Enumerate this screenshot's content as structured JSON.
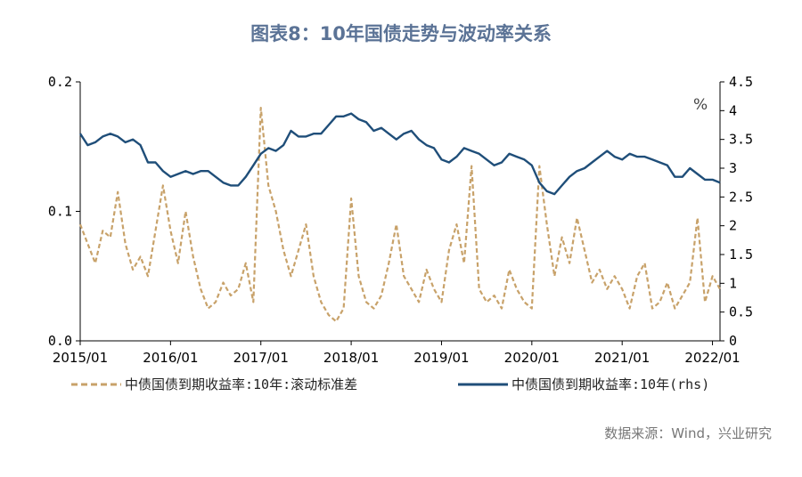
{
  "title": "图表8：10年国债走势与波动率关系",
  "source": "数据来源：Wind，兴业研究",
  "colors": {
    "left_series": "#c8a26a",
    "right_series": "#1f4e79",
    "title": "#5b7396"
  },
  "chart_data": {
    "type": "line",
    "left_axis": {
      "ylim": [
        0,
        0.2
      ],
      "ticks": [
        "0.0",
        "0.1",
        "0.2"
      ]
    },
    "right_axis": {
      "ylim": [
        0,
        4.5
      ],
      "unit": "%",
      "ticks": [
        "0",
        "0.5",
        "1",
        "1.5",
        "2",
        "2.5",
        "3",
        "3.5",
        "4",
        "4.5"
      ]
    },
    "x_ticks": [
      "2015/01",
      "2016/01",
      "2017/01",
      "2018/01",
      "2019/01",
      "2020/01",
      "2021/01",
      "2022/01"
    ],
    "x_range": [
      "2015/01",
      "2022/02"
    ],
    "legend": {
      "placement": "bottom"
    },
    "series": [
      {
        "name": "中债国债到期收益率:10年:滚动标准差",
        "axis": "left",
        "style": "dashed",
        "x": [
          "2015/01",
          "2015/02",
          "2015/03",
          "2015/04",
          "2015/05",
          "2015/06",
          "2015/07",
          "2015/08",
          "2015/09",
          "2015/10",
          "2015/11",
          "2015/12",
          "2016/01",
          "2016/02",
          "2016/03",
          "2016/04",
          "2016/05",
          "2016/06",
          "2016/07",
          "2016/08",
          "2016/09",
          "2016/10",
          "2016/11",
          "2016/12",
          "2017/01",
          "2017/02",
          "2017/03",
          "2017/04",
          "2017/05",
          "2017/06",
          "2017/07",
          "2017/08",
          "2017/09",
          "2017/10",
          "2017/11",
          "2017/12",
          "2018/01",
          "2018/02",
          "2018/03",
          "2018/04",
          "2018/05",
          "2018/06",
          "2018/07",
          "2018/08",
          "2018/09",
          "2018/10",
          "2018/11",
          "2018/12",
          "2019/01",
          "2019/02",
          "2019/03",
          "2019/04",
          "2019/05",
          "2019/06",
          "2019/07",
          "2019/08",
          "2019/09",
          "2019/10",
          "2019/11",
          "2019/12",
          "2020/01",
          "2020/02",
          "2020/03",
          "2020/04",
          "2020/05",
          "2020/06",
          "2020/07",
          "2020/08",
          "2020/09",
          "2020/10",
          "2020/11",
          "2020/12",
          "2021/01",
          "2021/02",
          "2021/03",
          "2021/04",
          "2021/05",
          "2021/06",
          "2021/07",
          "2021/08",
          "2021/09",
          "2021/10",
          "2021/11",
          "2021/12",
          "2022/01",
          "2022/02"
        ],
        "values": [
          0.09,
          0.075,
          0.06,
          0.085,
          0.08,
          0.115,
          0.075,
          0.055,
          0.065,
          0.05,
          0.085,
          0.12,
          0.085,
          0.06,
          0.1,
          0.065,
          0.04,
          0.025,
          0.03,
          0.045,
          0.035,
          0.04,
          0.06,
          0.03,
          0.18,
          0.12,
          0.1,
          0.07,
          0.05,
          0.07,
          0.09,
          0.05,
          0.03,
          0.02,
          0.015,
          0.025,
          0.11,
          0.05,
          0.03,
          0.025,
          0.035,
          0.06,
          0.09,
          0.05,
          0.04,
          0.03,
          0.055,
          0.04,
          0.03,
          0.07,
          0.09,
          0.06,
          0.135,
          0.04,
          0.03,
          0.035,
          0.025,
          0.055,
          0.04,
          0.03,
          0.025,
          0.135,
          0.09,
          0.05,
          0.08,
          0.06,
          0.095,
          0.07,
          0.045,
          0.055,
          0.04,
          0.05,
          0.04,
          0.025,
          0.05,
          0.06,
          0.025,
          0.03,
          0.045,
          0.025,
          0.035,
          0.045,
          0.095,
          0.03,
          0.05,
          0.04
        ]
      },
      {
        "name": "中债国债到期收益率:10年(rhs)",
        "axis": "right",
        "style": "solid",
        "x": [
          "2015/01",
          "2015/02",
          "2015/03",
          "2015/04",
          "2015/05",
          "2015/06",
          "2015/07",
          "2015/08",
          "2015/09",
          "2015/10",
          "2015/11",
          "2015/12",
          "2016/01",
          "2016/02",
          "2016/03",
          "2016/04",
          "2016/05",
          "2016/06",
          "2016/07",
          "2016/08",
          "2016/09",
          "2016/10",
          "2016/11",
          "2016/12",
          "2017/01",
          "2017/02",
          "2017/03",
          "2017/04",
          "2017/05",
          "2017/06",
          "2017/07",
          "2017/08",
          "2017/09",
          "2017/10",
          "2017/11",
          "2017/12",
          "2018/01",
          "2018/02",
          "2018/03",
          "2018/04",
          "2018/05",
          "2018/06",
          "2018/07",
          "2018/08",
          "2018/09",
          "2018/10",
          "2018/11",
          "2018/12",
          "2019/01",
          "2019/02",
          "2019/03",
          "2019/04",
          "2019/05",
          "2019/06",
          "2019/07",
          "2019/08",
          "2019/09",
          "2019/10",
          "2019/11",
          "2019/12",
          "2020/01",
          "2020/02",
          "2020/03",
          "2020/04",
          "2020/05",
          "2020/06",
          "2020/07",
          "2020/08",
          "2020/09",
          "2020/10",
          "2020/11",
          "2020/12",
          "2021/01",
          "2021/02",
          "2021/03",
          "2021/04",
          "2021/05",
          "2021/06",
          "2021/07",
          "2021/08",
          "2021/09",
          "2021/10",
          "2021/11",
          "2021/12",
          "2022/01",
          "2022/02"
        ],
        "values": [
          3.6,
          3.4,
          3.45,
          3.55,
          3.6,
          3.55,
          3.45,
          3.5,
          3.4,
          3.1,
          3.1,
          2.95,
          2.85,
          2.9,
          2.95,
          2.9,
          2.95,
          2.95,
          2.85,
          2.75,
          2.7,
          2.7,
          2.85,
          3.05,
          3.25,
          3.35,
          3.3,
          3.4,
          3.65,
          3.55,
          3.55,
          3.6,
          3.6,
          3.75,
          3.9,
          3.9,
          3.95,
          3.85,
          3.8,
          3.65,
          3.7,
          3.6,
          3.5,
          3.6,
          3.65,
          3.5,
          3.4,
          3.35,
          3.15,
          3.1,
          3.2,
          3.35,
          3.3,
          3.25,
          3.15,
          3.05,
          3.1,
          3.25,
          3.2,
          3.15,
          3.05,
          2.75,
          2.6,
          2.55,
          2.7,
          2.85,
          2.95,
          3.0,
          3.1,
          3.2,
          3.3,
          3.2,
          3.15,
          3.25,
          3.2,
          3.2,
          3.15,
          3.1,
          3.05,
          2.85,
          2.85,
          3.0,
          2.9,
          2.8,
          2.8,
          2.75
        ]
      }
    ]
  }
}
